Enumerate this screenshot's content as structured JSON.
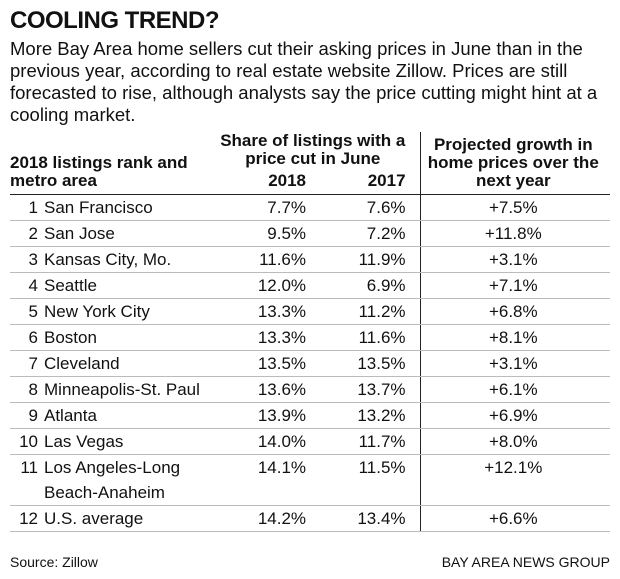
{
  "header": {
    "title": "COOLING TREND?",
    "subtitle": "More Bay Area home sellers cut their asking prices in June than in the previous year, according to real estate website Zillow. Prices are still forecasted to rise, although analysts say the price cutting might hint at a cooling market."
  },
  "table": {
    "header": {
      "rank_metro": "2018 listings rank and metro area",
      "share": "Share of listings with a price cut in June",
      "year_2018": "2018",
      "year_2017": "2017",
      "growth": "Projected growth in home prices over the next year"
    },
    "rows": [
      [
        1,
        "San Francisco",
        "7.7%",
        "7.6%",
        "+7.5%"
      ],
      [
        2,
        "San Jose",
        "9.5%",
        "7.2%",
        "+11.8%"
      ],
      [
        3,
        "Kansas City, Mo.",
        "11.6%",
        "11.9%",
        "+3.1%"
      ],
      [
        4,
        "Seattle",
        "12.0%",
        "6.9%",
        "+7.1%"
      ],
      [
        5,
        "New York City",
        "13.3%",
        "11.2%",
        "+6.8%"
      ],
      [
        6,
        "Boston",
        "13.3%",
        "11.6%",
        "+8.1%"
      ],
      [
        7,
        "Cleveland",
        "13.5%",
        "13.5%",
        "+3.1%"
      ],
      [
        8,
        "Minneapolis-St. Paul",
        "13.6%",
        "13.7%",
        "+6.1%"
      ],
      [
        9,
        "Atlanta",
        "13.9%",
        "13.2%",
        "+6.9%"
      ],
      [
        10,
        "Las Vegas",
        "14.0%",
        "11.7%",
        "+8.0%"
      ],
      [
        11,
        "Los Angeles-Long Beach-Anaheim",
        "14.1%",
        "11.5%",
        "+12.1%"
      ],
      [
        12,
        "U.S. average",
        "14.2%",
        "13.4%",
        "+6.6%"
      ]
    ]
  },
  "footer": {
    "source": "Source: Zillow",
    "credit": "BAY AREA NEWS GROUP"
  }
}
